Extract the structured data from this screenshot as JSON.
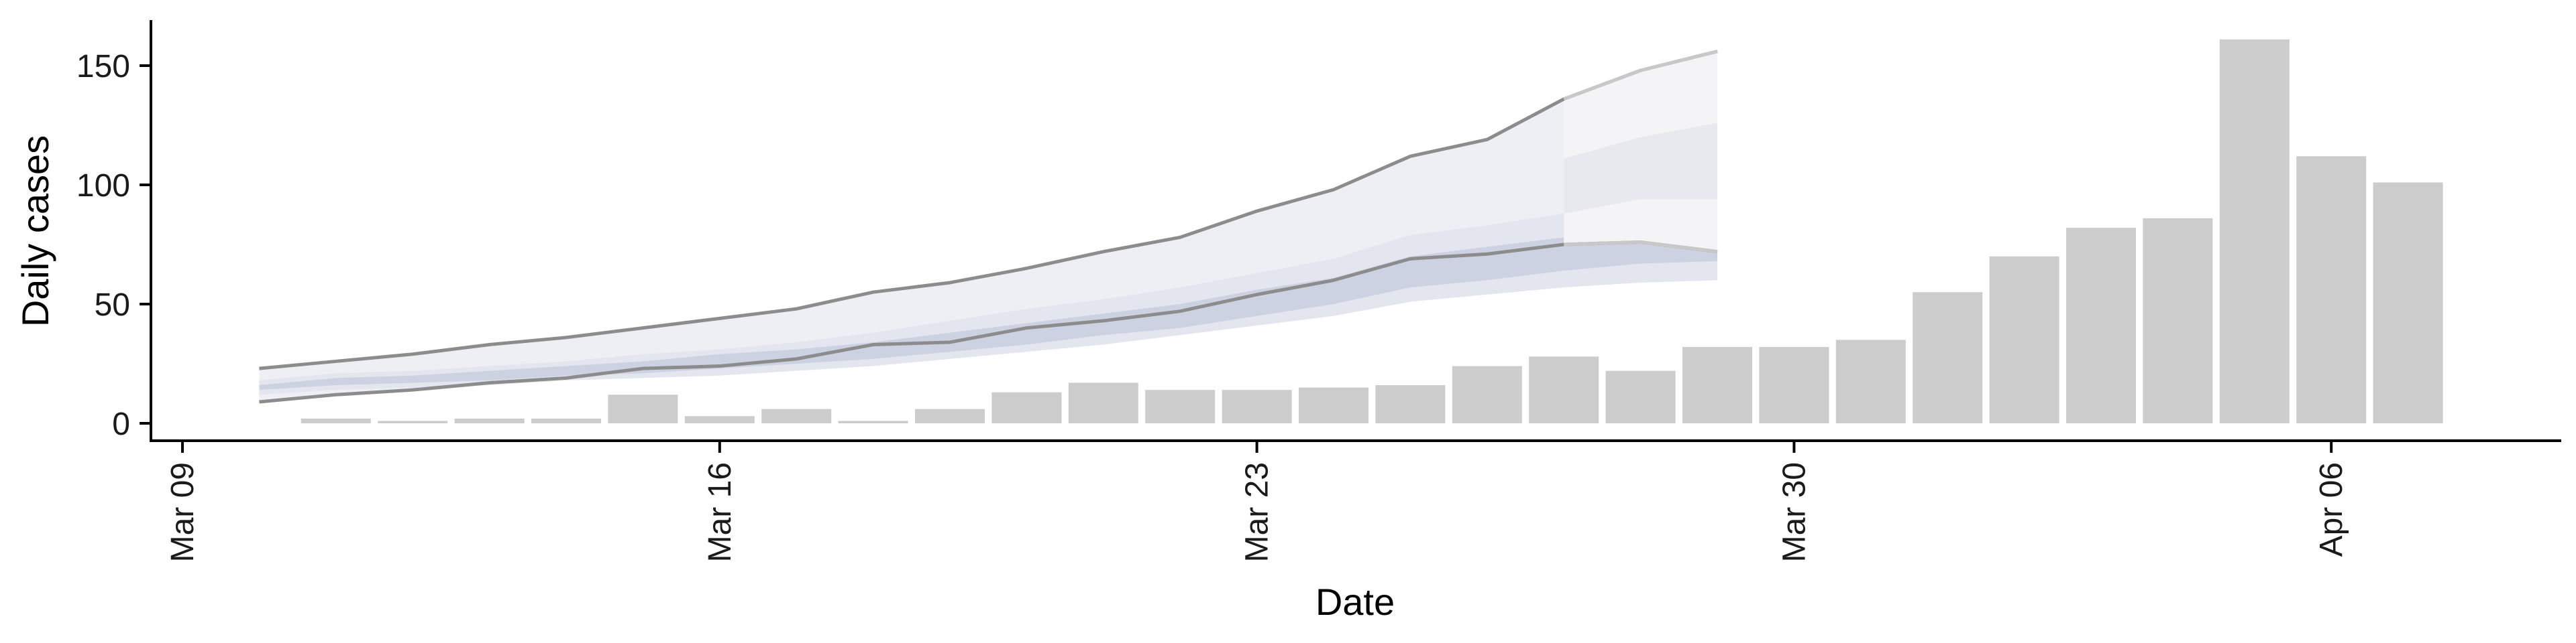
{
  "chart_data": {
    "type": "bar",
    "xlabel": "Date",
    "ylabel": "Daily cases",
    "x_ticks": [
      "Mar 09",
      "Mar 16",
      "Mar 23",
      "Mar 30",
      "Apr 06"
    ],
    "y_ticks": [
      "0",
      "50",
      "100",
      "150"
    ],
    "ylim": [
      -8,
      168
    ],
    "xlim": [
      "2020-03-09",
      "2020-04-09"
    ],
    "grid": false,
    "legend": "none",
    "bars": {
      "color": "#cccccc",
      "dates": [
        "2020-03-11",
        "2020-03-12",
        "2020-03-13",
        "2020-03-14",
        "2020-03-15",
        "2020-03-16",
        "2020-03-17",
        "2020-03-18",
        "2020-03-19",
        "2020-03-20",
        "2020-03-21",
        "2020-03-22",
        "2020-03-23",
        "2020-03-24",
        "2020-03-25",
        "2020-03-26",
        "2020-03-27",
        "2020-03-28",
        "2020-03-29",
        "2020-03-30",
        "2020-03-31",
        "2020-04-01",
        "2020-04-02",
        "2020-04-03",
        "2020-04-04",
        "2020-04-05",
        "2020-04-06",
        "2020-04-07"
      ],
      "values": [
        2,
        1,
        2,
        2,
        12,
        3,
        6,
        1,
        6,
        13,
        17,
        14,
        14,
        15,
        16,
        24,
        28,
        22,
        32,
        32,
        35,
        55,
        70,
        82,
        86,
        161,
        112,
        101
      ]
    },
    "nowcast": {
      "dates": [
        "2020-03-10",
        "2020-03-11",
        "2020-03-12",
        "2020-03-13",
        "2020-03-14",
        "2020-03-15",
        "2020-03-16",
        "2020-03-17",
        "2020-03-18",
        "2020-03-19",
        "2020-03-20",
        "2020-03-21",
        "2020-03-22",
        "2020-03-23",
        "2020-03-24",
        "2020-03-25",
        "2020-03-26",
        "2020-03-27",
        "2020-03-28",
        "2020-03-29"
      ],
      "upper_90": [
        23,
        26,
        29,
        33,
        36,
        40,
        44,
        48,
        55,
        59,
        65,
        72,
        78,
        89,
        98,
        112,
        119,
        136,
        148,
        156
      ],
      "lower_90": [
        9,
        12,
        14,
        17,
        19,
        23,
        24,
        27,
        33,
        34,
        40,
        43,
        47,
        54,
        60,
        69,
        71,
        75,
        76,
        72
      ],
      "upper_50": [
        18,
        21,
        22,
        24,
        26,
        29,
        31,
        34,
        38,
        43,
        48,
        52,
        57,
        63,
        69,
        79,
        83,
        88,
        94,
        94
      ],
      "lower_50": [
        12,
        14,
        15,
        16,
        18,
        19,
        20,
        22,
        24,
        27,
        30,
        33,
        37,
        41,
        45,
        51,
        54,
        57,
        59,
        60
      ],
      "upper_20": [
        16,
        19,
        20,
        22,
        24,
        26,
        29,
        31,
        34,
        38,
        42,
        46,
        50,
        56,
        61,
        70,
        74,
        78,
        82,
        83
      ],
      "lower_20": [
        14,
        16,
        17,
        18,
        20,
        21,
        23,
        25,
        27,
        30,
        33,
        37,
        40,
        45,
        50,
        57,
        60,
        64,
        67,
        68
      ],
      "upper_line_color": "#8c8c8c",
      "lower_line_color": "#8c8c8c",
      "band_outer_color": "#eeeff5",
      "band_mid_color": "#e3e6ef",
      "band_inner_color": "#cdd2e2"
    },
    "forecast": {
      "dates": [
        "2020-03-27",
        "2020-03-28",
        "2020-03-29"
      ],
      "upper_90": [
        136,
        148,
        156
      ],
      "lower_90": [
        75,
        76,
        72
      ],
      "upper_50": [
        111,
        120,
        126
      ],
      "lower_50": [
        88,
        94,
        94
      ],
      "line_color": "#c8c8c8",
      "band_outer_color": "#f4f4f6",
      "band_inner_color": "#e8e9ef"
    }
  }
}
